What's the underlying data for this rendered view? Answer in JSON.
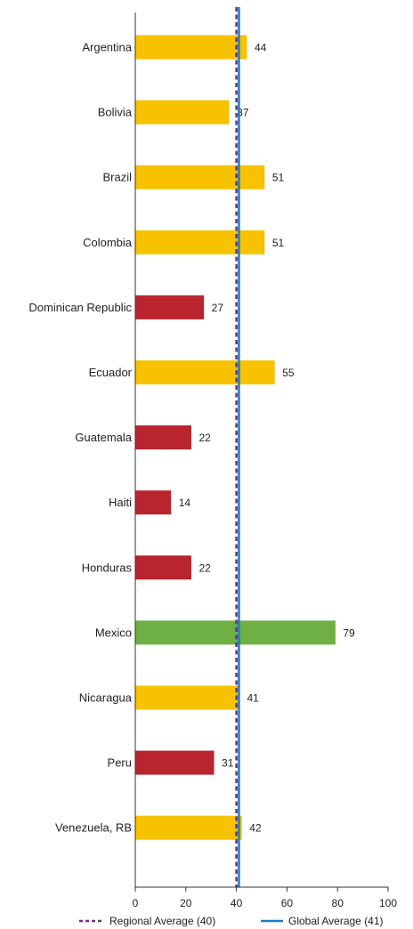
{
  "chart_data": {
    "type": "bar",
    "orientation": "horizontal",
    "categories": [
      "Argentina",
      "Bolivia",
      "Brazil",
      "Colombia",
      "Dominican Republic",
      "Ecuador",
      "Guatemala",
      "Haiti",
      "Honduras",
      "Mexico",
      "Nicaragua",
      "Peru",
      "Venezuela, RB"
    ],
    "values": [
      44,
      37,
      51,
      51,
      27,
      55,
      22,
      14,
      22,
      79,
      41,
      31,
      42
    ],
    "bar_colors": [
      "#f7c200",
      "#f7c200",
      "#f7c200",
      "#f7c200",
      "#b9252f",
      "#f7c200",
      "#b9252f",
      "#b9252f",
      "#b9252f",
      "#6eb043",
      "#f7c200",
      "#b9252f",
      "#f7c200"
    ],
    "xlim": [
      0,
      100
    ],
    "xticks": [
      "0",
      "20",
      "40",
      "60",
      "80",
      "100"
    ],
    "grid": false,
    "reference_lines": [
      {
        "name": "Regional Average (40)",
        "value": 40,
        "style": "dashed",
        "color": "#7b2a7d"
      },
      {
        "name": "Global Average (41)",
        "value": 41,
        "style": "solid",
        "color": "#1a7fc1"
      }
    ],
    "legend_position": "bottom"
  }
}
